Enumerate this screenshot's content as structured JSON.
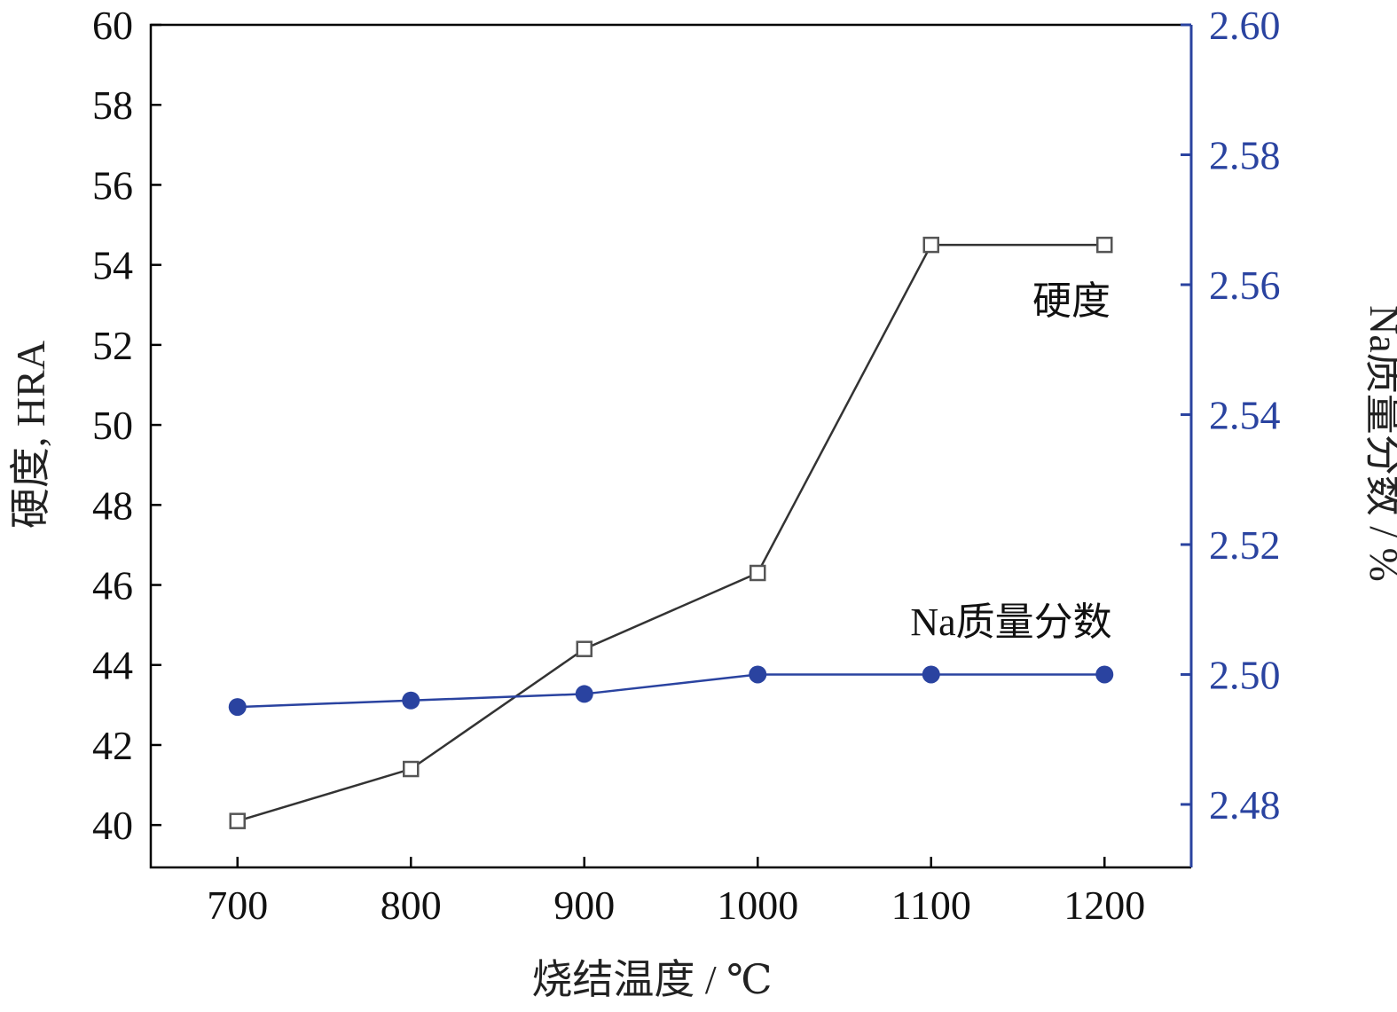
{
  "chart_data": {
    "type": "line",
    "title": "",
    "xlabel": "烧结温度 / ℃",
    "ylabel": "硬度, HRA",
    "y2label": "Na质量分数 / %",
    "x": [
      700,
      800,
      900,
      1000,
      1100,
      1200
    ],
    "xticks": [
      "700",
      "800",
      "900",
      "1000",
      "1100",
      "1200"
    ],
    "xlim": [
      650,
      1250
    ],
    "ylim": [
      38.94,
      60
    ],
    "yticks": [
      "40",
      "42",
      "44",
      "46",
      "48",
      "50",
      "52",
      "54",
      "56",
      "58",
      "60"
    ],
    "y2lim": [
      2.4703,
      2.6
    ],
    "y2ticks": [
      "2.48",
      "2.50",
      "2.52",
      "2.54",
      "2.56",
      "2.58",
      "2.60"
    ],
    "grid": false,
    "series": [
      {
        "name": "硬度",
        "axis": "left",
        "marker": "open-square",
        "color": "#333333",
        "values": [
          40.1,
          41.4,
          44.4,
          46.3,
          54.5,
          54.5
        ]
      },
      {
        "name": "Na质量分数",
        "axis": "right",
        "marker": "filled-circle",
        "color": "#2a43a0",
        "values": [
          2.495,
          2.496,
          2.497,
          2.5,
          2.5,
          2.5
        ]
      }
    ],
    "colors": {
      "axis_left": "#000000",
      "axis_right": "#2a43a0"
    }
  }
}
